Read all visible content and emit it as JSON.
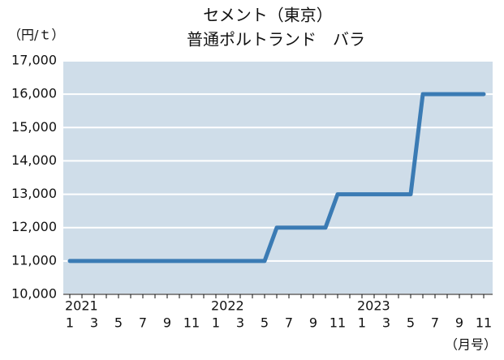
{
  "chart_data": {
    "type": "line",
    "title": [
      "セメント（東京）",
      "普通ポルトランド　バラ"
    ],
    "y_unit": "（円/ｔ）",
    "x_unit": "（月号）",
    "years": [
      "2021",
      "2022",
      "2023"
    ],
    "categories": [
      "1",
      null,
      "3",
      null,
      "5",
      null,
      "7",
      null,
      "9",
      null,
      "11",
      null,
      "1",
      null,
      "3",
      null,
      "5",
      null,
      "7",
      null,
      "9",
      null,
      "11",
      null,
      "1",
      null,
      "3",
      null,
      "5",
      null,
      "7",
      null,
      "9",
      null,
      "11"
    ],
    "series": [
      {
        "color": "#3b7bb4",
        "values": [
          11000,
          11000,
          11000,
          11000,
          11000,
          11000,
          11000,
          11000,
          11000,
          11000,
          11000,
          11000,
          11000,
          11000,
          11000,
          11000,
          11000,
          12000,
          12000,
          12000,
          12000,
          12000,
          13000,
          13000,
          13000,
          13000,
          13000,
          13000,
          13000,
          16000,
          16000,
          16000,
          16000,
          16000,
          16000
        ]
      }
    ],
    "ylim": [
      10000,
      17000
    ],
    "yticks": [
      {
        "value": 10000,
        "label": "10,000"
      },
      {
        "value": 11000,
        "label": "11,000"
      },
      {
        "value": 12000,
        "label": "12,000"
      },
      {
        "value": 13000,
        "label": "13,000"
      },
      {
        "value": 14000,
        "label": "14,000"
      },
      {
        "value": 15000,
        "label": "15,000"
      },
      {
        "value": 16000,
        "label": "16,000"
      },
      {
        "value": 17000,
        "label": "17,000"
      }
    ],
    "grid": true
  }
}
